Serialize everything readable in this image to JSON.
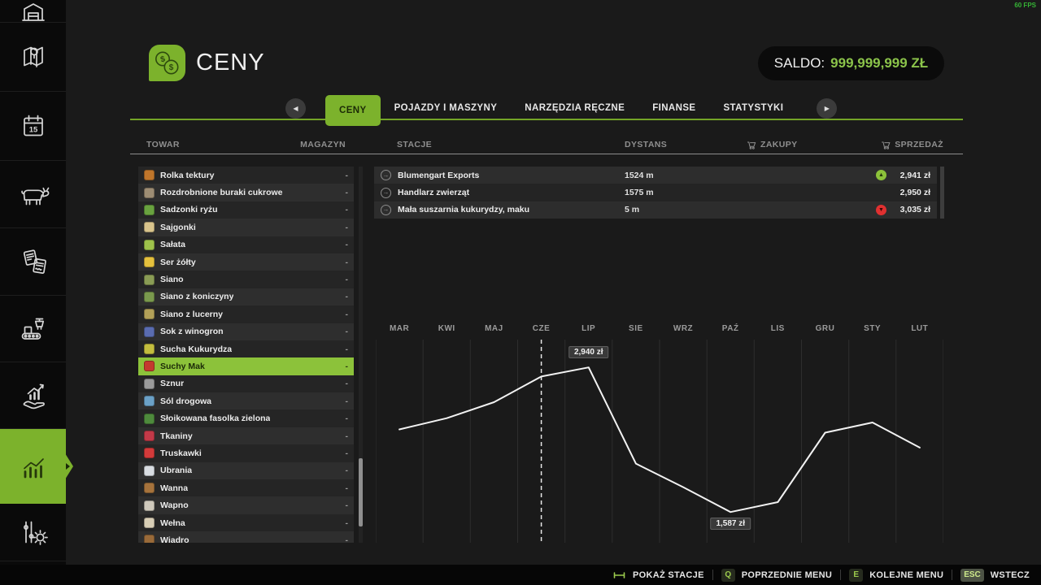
{
  "fps": "60 FPS",
  "accent": "#7cb22c",
  "header": {
    "title": "CENY",
    "icon": "prices-coins-icon"
  },
  "saldo": {
    "label": "SALDO:",
    "value": "999,999,999 ZŁ",
    "value_color": "#8bc34a"
  },
  "tabs": {
    "items": [
      {
        "label": "CENY",
        "active": true
      },
      {
        "label": "POJAZDY I MASZYNY",
        "active": false
      },
      {
        "label": "NARZĘDZIA RĘCZNE",
        "active": false
      },
      {
        "label": "FINANSE",
        "active": false
      },
      {
        "label": "STATYSTYKI",
        "active": false
      }
    ]
  },
  "columns": {
    "towar": "TOWAR",
    "magazyn": "MAGAZYN",
    "stacje": "STACJE",
    "dystans": "DYSTANS",
    "zakupy": "ZAKUPY",
    "sprzedaz": "SPRZEDAŻ"
  },
  "products": [
    {
      "name": "Rolka tektury",
      "storage": "-",
      "icon": "cardboard-roll-icon",
      "color": "#c0762b",
      "selected": false
    },
    {
      "name": "Rozdrobnione buraki cukrowe",
      "storage": "-",
      "icon": "chopped-sugar-beet-icon",
      "color": "#9d8d74",
      "selected": false
    },
    {
      "name": "Sadzonki ryżu",
      "storage": "-",
      "icon": "rice-seedlings-icon",
      "color": "#69a23f",
      "selected": false
    },
    {
      "name": "Sajgonki",
      "storage": "-",
      "icon": "spring-rolls-icon",
      "color": "#d9c48c",
      "selected": false
    },
    {
      "name": "Sałata",
      "storage": "-",
      "icon": "lettuce-icon",
      "color": "#9ec24b",
      "selected": false
    },
    {
      "name": "Ser żółty",
      "storage": "-",
      "icon": "cheese-icon",
      "color": "#e5c13d",
      "selected": false
    },
    {
      "name": "Siano",
      "storage": "-",
      "icon": "hay-icon",
      "color": "#8a9c55",
      "selected": false
    },
    {
      "name": "Siano z koniczyny",
      "storage": "-",
      "icon": "clover-hay-icon",
      "color": "#7a994d",
      "selected": false
    },
    {
      "name": "Siano z lucerny",
      "storage": "-",
      "icon": "alfalfa-hay-icon",
      "color": "#b2a058",
      "selected": false
    },
    {
      "name": "Sok z winogron",
      "storage": "-",
      "icon": "grape-juice-icon",
      "color": "#5a6cb0",
      "selected": false
    },
    {
      "name": "Sucha Kukurydza",
      "storage": "-",
      "icon": "dry-corn-icon",
      "color": "#c3bd3e",
      "selected": false
    },
    {
      "name": "Suchy Mak",
      "storage": "-",
      "icon": "dry-poppy-icon",
      "color": "#c43a2e",
      "selected": true
    },
    {
      "name": "Sznur",
      "storage": "-",
      "icon": "twine-icon",
      "color": "#9a9a9a",
      "selected": false
    },
    {
      "name": "Sól drogowa",
      "storage": "-",
      "icon": "road-salt-icon",
      "color": "#6ba1c7",
      "selected": false
    },
    {
      "name": "Słoikowana fasolka zielona",
      "storage": "-",
      "icon": "jarred-green-beans-icon",
      "color": "#4e8a3c",
      "selected": false
    },
    {
      "name": "Tkaniny",
      "storage": "-",
      "icon": "fabric-icon",
      "color": "#c23948",
      "selected": false
    },
    {
      "name": "Truskawki",
      "storage": "-",
      "icon": "strawberries-icon",
      "color": "#d23a3a",
      "selected": false
    },
    {
      "name": "Ubrania",
      "storage": "-",
      "icon": "clothes-icon",
      "color": "#d9dde2",
      "selected": false
    },
    {
      "name": "Wanna",
      "storage": "-",
      "icon": "bathtub-icon",
      "color": "#a6733c",
      "selected": false
    },
    {
      "name": "Wapno",
      "storage": "-",
      "icon": "lime-icon",
      "color": "#cfc9bc",
      "selected": false
    },
    {
      "name": "Wełna",
      "storage": "-",
      "icon": "wool-icon",
      "color": "#d8ceb6",
      "selected": false
    },
    {
      "name": "Wiadro",
      "storage": "-",
      "icon": "bucket-icon",
      "color": "#996a39",
      "selected": false
    }
  ],
  "stations": [
    {
      "name": "Blumengart Exports",
      "distance": "1524 m",
      "price": "2,941 zł",
      "trend": "up"
    },
    {
      "name": "Handlarz zwierząt",
      "distance": "1575 m",
      "price": "2,950 zł",
      "trend": "none"
    },
    {
      "name": "Mała suszarnia kukurydzy, maku",
      "distance": "5 m",
      "price": "3,035 zł",
      "trend": "down"
    }
  ],
  "chart_data": {
    "type": "line",
    "x": [
      "MAR",
      "KWI",
      "MAJ",
      "CZE",
      "LIP",
      "SIE",
      "WRZ",
      "PAŹ",
      "LIS",
      "GRU",
      "STY",
      "LUT"
    ],
    "values": [
      2360,
      2465,
      2615,
      2855,
      2940,
      2040,
      1820,
      1587,
      1680,
      2330,
      2425,
      2190
    ],
    "unit": "zł",
    "ylim": [
      1300,
      3200
    ],
    "grid": "vertical",
    "line_color": "#f2f2f2",
    "current_month_index": 3,
    "annotations": [
      {
        "index": 4,
        "label": "2,940 zł",
        "placement": "above"
      },
      {
        "index": 7,
        "label": "1,587 zł",
        "placement": "below"
      }
    ]
  },
  "sidebar": {
    "items": [
      {
        "icon": "garage-icon",
        "active": false
      },
      {
        "icon": "map-icon",
        "active": false
      },
      {
        "icon": "calendar-icon",
        "badge": "15",
        "active": false
      },
      {
        "icon": "animals-icon",
        "active": false
      },
      {
        "icon": "contracts-icon",
        "active": false
      },
      {
        "icon": "production-icon",
        "active": false
      },
      {
        "icon": "sales-icon",
        "active": false
      },
      {
        "icon": "statistics-icon",
        "active": true
      },
      {
        "icon": "settings-icon",
        "active": false
      }
    ]
  },
  "footer": {
    "hints": [
      {
        "key": "space",
        "label": "POKAŻ STACJE"
      },
      {
        "key": "Q",
        "label": "POPRZEDNIE MENU"
      },
      {
        "key": "E",
        "label": "KOLEJNE MENU"
      },
      {
        "key": "ESC",
        "label": "WSTECZ"
      }
    ]
  }
}
